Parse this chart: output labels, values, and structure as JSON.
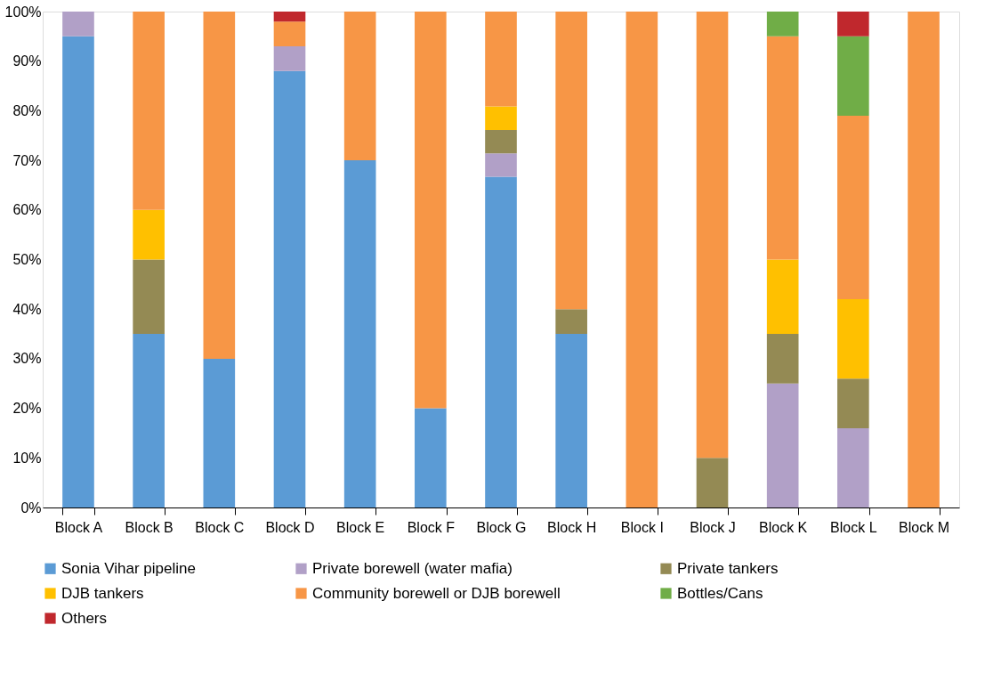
{
  "chart_data": {
    "type": "bar",
    "stacked": true,
    "categories": [
      "Block A",
      "Block B",
      "Block C",
      "Block D",
      "Block E",
      "Block F",
      "Block G",
      "Block H",
      "Block I",
      "Block J",
      "Block K",
      "Block L",
      "Block M"
    ],
    "series": [
      {
        "name": "Sonia Vihar pipeline",
        "color": "#5b9bd5",
        "values": [
          95,
          35,
          30,
          88,
          70,
          20,
          66.7,
          35,
          null,
          null,
          null,
          null,
          null
        ]
      },
      {
        "name": "Private borewell (water mafia)",
        "color": "#b1a0c7",
        "values": [
          5,
          null,
          null,
          5,
          null,
          null,
          4.7,
          null,
          null,
          null,
          25,
          16,
          null
        ]
      },
      {
        "name": "Private tankers",
        "color": "#948a54",
        "values": [
          null,
          15,
          null,
          null,
          null,
          null,
          4.7,
          5,
          null,
          10,
          10,
          10,
          null
        ]
      },
      {
        "name": "DJB tankers",
        "color": "#ffc000",
        "values": [
          null,
          10,
          null,
          null,
          null,
          null,
          4.8,
          null,
          null,
          null,
          15,
          16,
          null
        ]
      },
      {
        "name": "Community borewell or DJB borewell",
        "color": "#f79646",
        "values": [
          null,
          40,
          70,
          5,
          30,
          80,
          19.1,
          60,
          100,
          90,
          45,
          37,
          100
        ]
      },
      {
        "name": "Bottles/Cans",
        "color": "#70ad47",
        "values": [
          null,
          null,
          null,
          null,
          null,
          null,
          null,
          null,
          null,
          null,
          5,
          16,
          null
        ]
      },
      {
        "name": "Others",
        "color": "#c0282d",
        "values": [
          null,
          null,
          null,
          2,
          null,
          null,
          null,
          null,
          null,
          null,
          null,
          5,
          null
        ]
      }
    ],
    "ylim": [
      0,
      100
    ],
    "yticks": [
      {
        "value": 0,
        "label": "0%"
      },
      {
        "value": 10,
        "label": "10%"
      },
      {
        "value": 20,
        "label": "20%"
      },
      {
        "value": 30,
        "label": "30%"
      },
      {
        "value": 40,
        "label": "40%"
      },
      {
        "value": 50,
        "label": "50%"
      },
      {
        "value": 60,
        "label": "60%"
      },
      {
        "value": 70,
        "label": "70%"
      },
      {
        "value": 80,
        "label": "80%"
      },
      {
        "value": 90,
        "label": "90%"
      },
      {
        "value": 100,
        "label": "100%"
      }
    ],
    "grid": false,
    "legend": "bottom"
  }
}
